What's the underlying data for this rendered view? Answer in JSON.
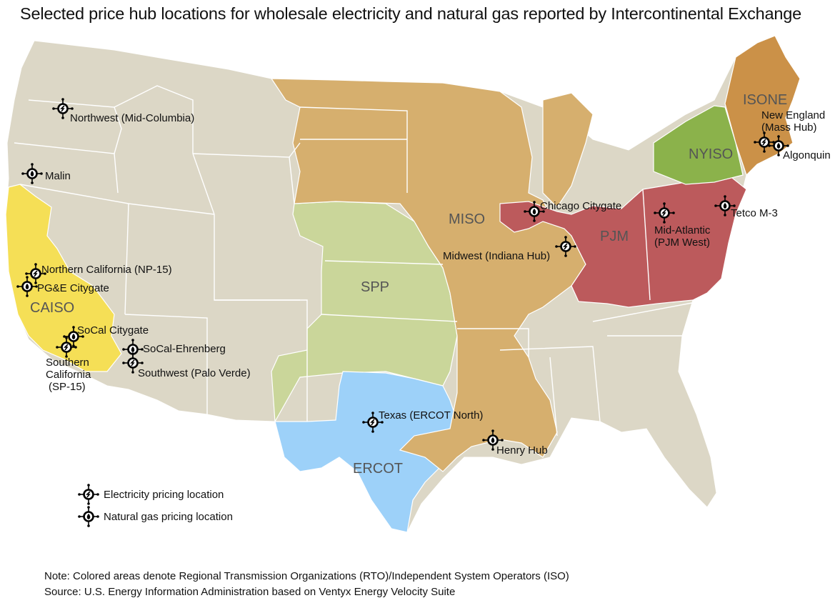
{
  "title": "Selected price hub locations for wholesale electricity and natural gas reported by Intercontinental Exchange",
  "colors": {
    "background_states": "#dcd7c6",
    "state_border": "#ffffff",
    "CAISO": "#f5df56",
    "MISO": "#d6af6e",
    "SPP": "#cad69a",
    "ERCOT": "#9dd1f9",
    "PJM": "#bc5a5c",
    "NYISO": "#8bb24b",
    "ISONE": "#cb9148",
    "marker": "#000000"
  },
  "regions": [
    {
      "id": "CAISO",
      "label": "CAISO"
    },
    {
      "id": "MISO",
      "label": "MISO"
    },
    {
      "id": "SPP",
      "label": "SPP"
    },
    {
      "id": "ERCOT",
      "label": "ERCOT"
    },
    {
      "id": "PJM",
      "label": "PJM"
    },
    {
      "id": "NYISO",
      "label": "NYISO"
    },
    {
      "id": "ISONE",
      "label": "ISONE"
    }
  ],
  "hubs": [
    {
      "lines": [
        "Northwest (Mid-Columbia)"
      ],
      "type": "electricity"
    },
    {
      "lines": [
        "Malin"
      ],
      "type": "gas"
    },
    {
      "lines": [
        "Northern California (NP-15)"
      ],
      "type": "electricity"
    },
    {
      "lines": [
        "PG&E Citygate"
      ],
      "type": "gas"
    },
    {
      "lines": [
        "SoCal Citygate"
      ],
      "type": "gas"
    },
    {
      "lines": [
        "Southern",
        "California",
        "(SP-15)"
      ],
      "type": "electricity"
    },
    {
      "lines": [
        "SoCal-Ehrenberg"
      ],
      "type": "gas"
    },
    {
      "lines": [
        "Southwest (Palo Verde)"
      ],
      "type": "electricity"
    },
    {
      "lines": [
        "Texas (ERCOT North)"
      ],
      "type": "electricity"
    },
    {
      "lines": [
        "Henry Hub"
      ],
      "type": "gas"
    },
    {
      "lines": [
        "Chicago Citygate"
      ],
      "type": "gas"
    },
    {
      "lines": [
        "Midwest (Indiana Hub)"
      ],
      "type": "electricity"
    },
    {
      "lines": [
        "Mid-Atlantic",
        "(PJM West)"
      ],
      "type": "electricity"
    },
    {
      "lines": [
        "Tetco M-3"
      ],
      "type": "gas"
    },
    {
      "lines": [
        "New England",
        "(Mass Hub)"
      ],
      "type": "electricity"
    },
    {
      "lines": [
        "Algonquin"
      ],
      "type": "gas"
    }
  ],
  "legend": {
    "electricity": "Electricity pricing location",
    "gas": "Natural gas pricing location"
  },
  "notes": {
    "note": "Note:  Colored areas denote Regional Transmission Organizations (RTO)/Independent System Operators (ISO)",
    "source": "Source:  U.S. Energy Information Administration based on Ventyx Energy Velocity Suite"
  }
}
